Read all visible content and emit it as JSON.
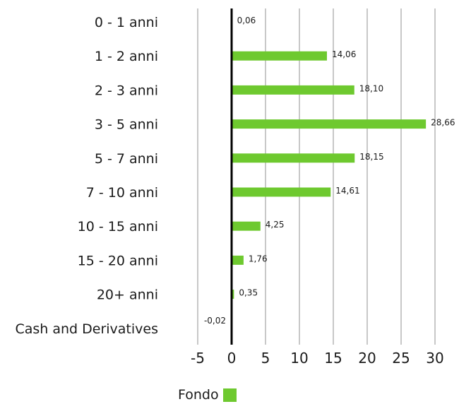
{
  "chart_data": {
    "type": "bar",
    "orientation": "horizontal",
    "categories": [
      "0 - 1 anni",
      "1 - 2 anni",
      "2 - 3 anni",
      "3 - 5 anni",
      "5 - 7 anni",
      "7 - 10 anni",
      "10 - 15 anni",
      "15 - 20 anni",
      "20+ anni",
      "Cash and Derivatives"
    ],
    "series": [
      {
        "name": "Fondo",
        "values": [
          0.06,
          14.06,
          18.1,
          28.66,
          18.15,
          14.61,
          4.25,
          1.76,
          0.35,
          -0.02
        ],
        "value_labels": [
          "0,06",
          "14,06",
          "18,10",
          "28,66",
          "18,15",
          "14,61",
          "4,25",
          "1,76",
          "0,35",
          "-0,02"
        ],
        "color": "#6ec92f"
      }
    ],
    "xlim": [
      -5,
      30
    ],
    "xticks": [
      -5,
      0,
      5,
      10,
      15,
      20,
      25,
      30
    ],
    "grid": true,
    "legend_position": "bottom"
  },
  "colors": {
    "bar": "#6ec92f",
    "grid": "#c8c8c8",
    "zero_line": "#000000"
  }
}
